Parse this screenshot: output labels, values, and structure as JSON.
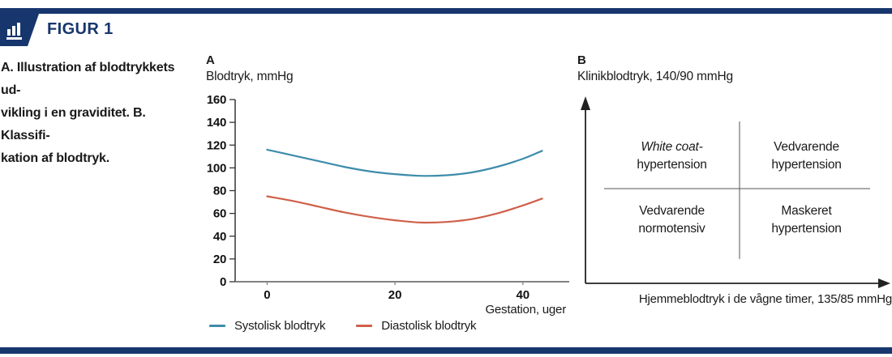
{
  "page": {
    "background": "#ffffff",
    "accent_navy": "#17366d",
    "text_color": "#1a1a1a"
  },
  "header": {
    "figure_label": "FIGUR 1",
    "icon": "bar-chart-icon"
  },
  "caption": {
    "lines": [
      "A. Illustration af blodtrykkets ud-",
      "vikling i en graviditet. B. Klassifi-",
      "kation af blodtryk."
    ]
  },
  "chart_data": {
    "type": "line",
    "panel_label": "A",
    "title": "Blodtryk, mmHg",
    "xlabel": "Gestation, uger",
    "ylabel": "",
    "xlim": [
      -5,
      47
    ],
    "ylim": [
      0,
      160
    ],
    "x_ticks": [
      0,
      20,
      40
    ],
    "y_ticks": [
      160,
      140,
      120,
      100,
      80,
      60,
      40,
      20,
      0
    ],
    "grid": false,
    "legend_position": "bottom",
    "x": [
      0,
      4,
      8,
      12,
      16,
      20,
      24,
      28,
      32,
      36,
      40,
      43
    ],
    "series": [
      {
        "name": "Systolisk blodtryk",
        "color": "#3e8cab",
        "values": [
          116,
          111,
          106,
          101,
          97,
          94.5,
          93,
          93.5,
          96,
          101,
          108,
          115
        ]
      },
      {
        "name": "Diastolisk blodtryk",
        "color": "#d0604a",
        "values": [
          75,
          71,
          66,
          61,
          57,
          54,
          52,
          52.5,
          55,
          60,
          67,
          73
        ]
      }
    ]
  },
  "panel_b": {
    "panel_label": "B",
    "title": "Klinikblodtryk, 140/90 mmHg",
    "x_axis_label": "Hjemmeblodtryk i de vågne timer, 135/85 mmHg",
    "quadrants": [
      {
        "position": "top-left",
        "line1": "White coat-",
        "line1_italic": true,
        "line2": "hypertension"
      },
      {
        "position": "top-right",
        "line1": "Vedvarende",
        "line2": "hypertension"
      },
      {
        "position": "bottom-left",
        "line1": "Vedvarende",
        "line2": "normotensiv"
      },
      {
        "position": "bottom-right",
        "line1": "Maskeret",
        "line2": "hypertension"
      }
    ]
  }
}
